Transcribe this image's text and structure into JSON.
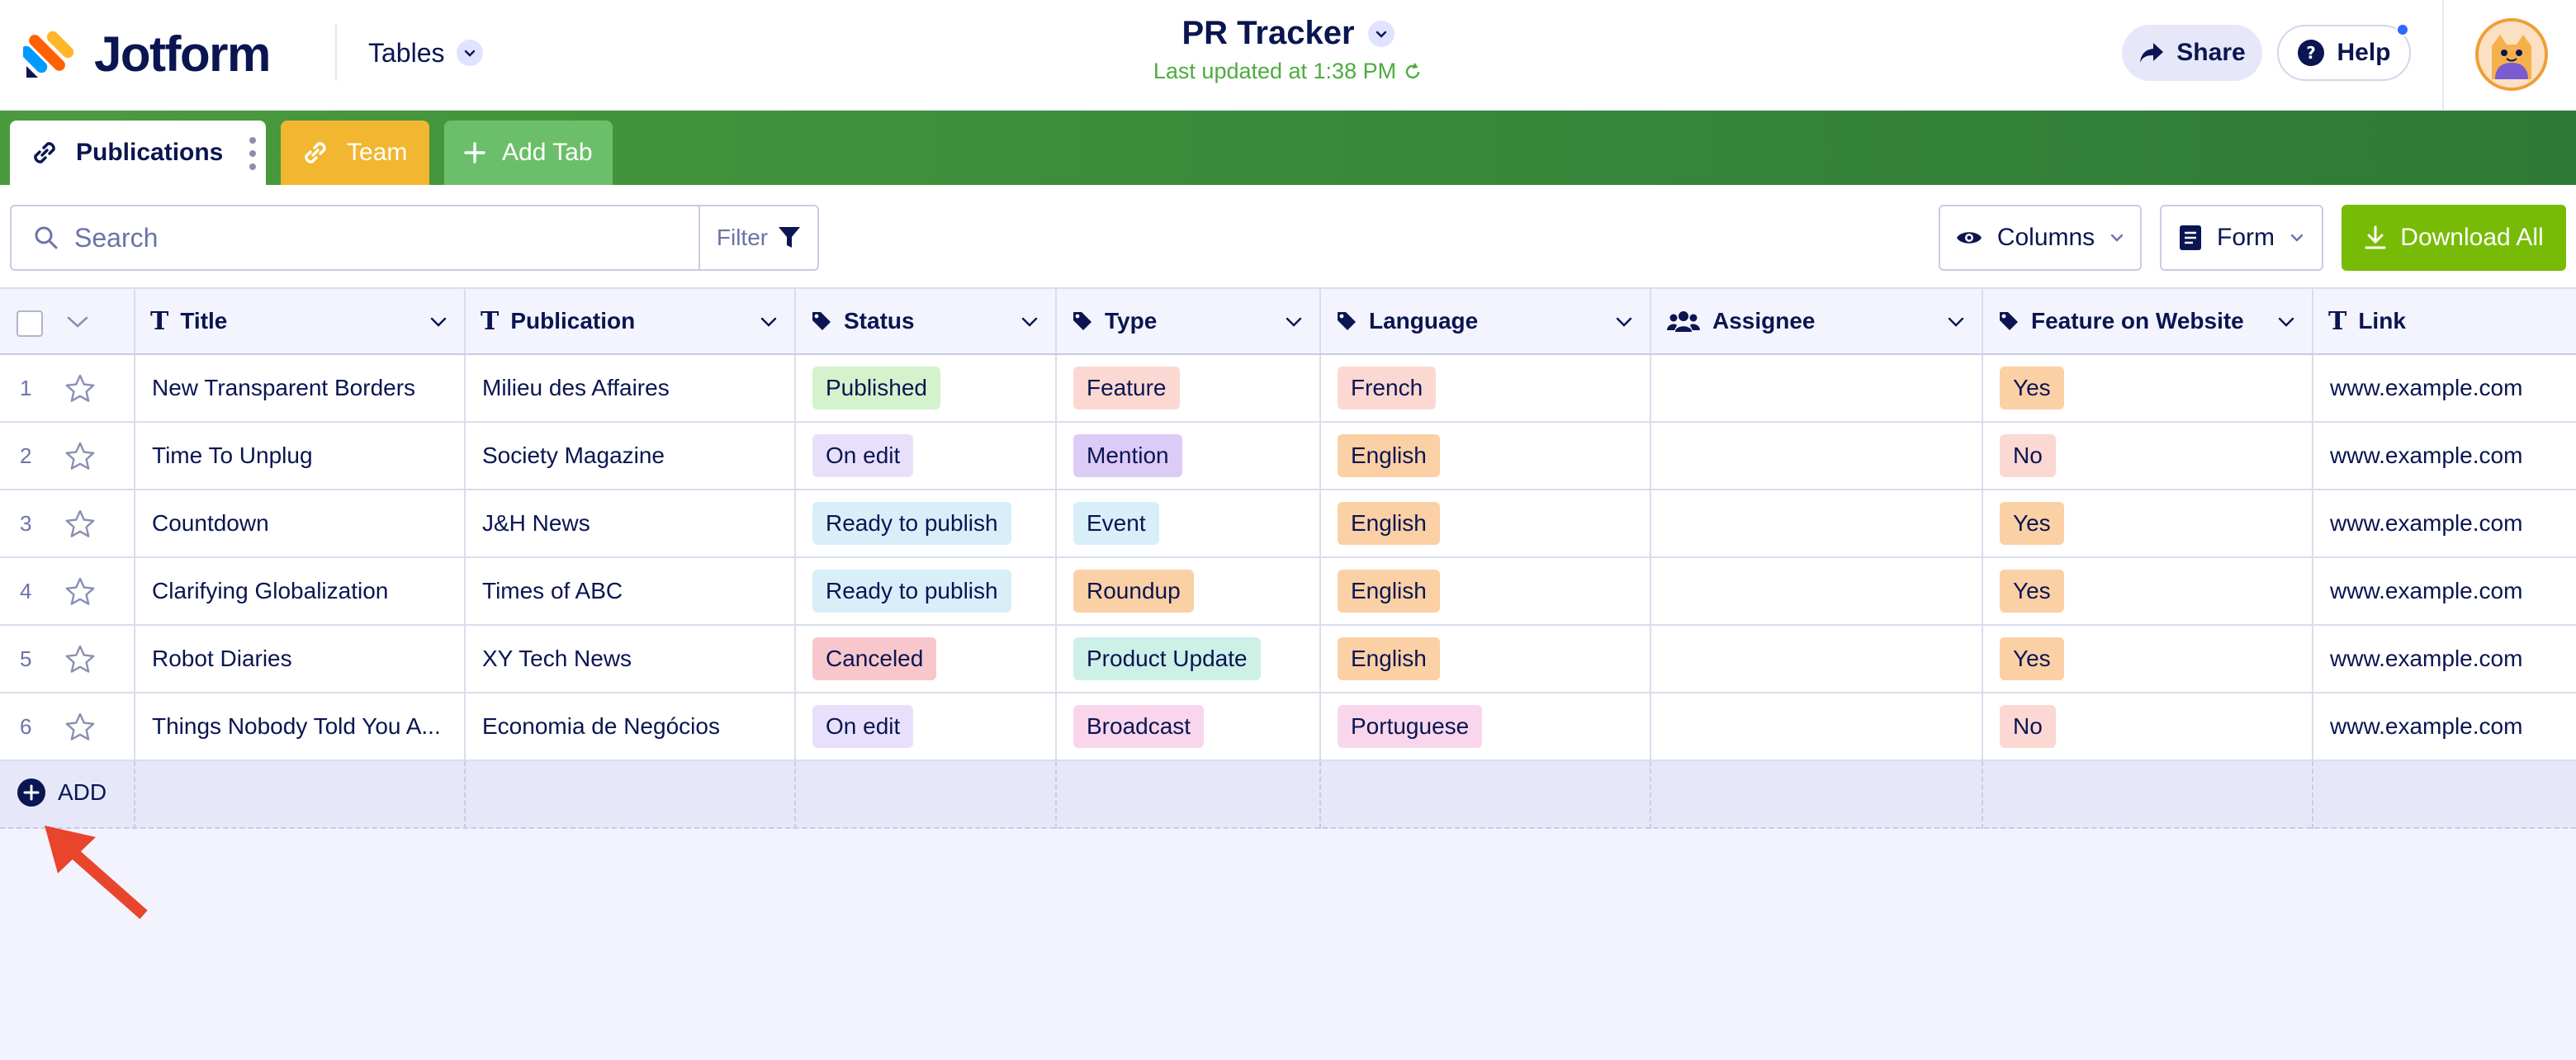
{
  "header": {
    "logo_text": "Jotform",
    "tables_label": "Tables",
    "title": "PR Tracker",
    "last_updated": "Last updated at 1:38 PM",
    "share_label": "Share",
    "help_label": "Help"
  },
  "tabs": [
    {
      "label": "Publications",
      "icon": "link-icon",
      "color": "#ffffff"
    },
    {
      "label": "Team",
      "icon": "link-icon",
      "color": "#f2b630"
    },
    {
      "label": "Add Tab",
      "icon": "plus-icon",
      "color": "#6cbf6a"
    }
  ],
  "toolbar": {
    "search_placeholder": "Search",
    "filter_label": "Filter",
    "columns_label": "Columns",
    "form_label": "Form",
    "download_label": "Download All"
  },
  "columns": [
    "Title",
    "Publication",
    "Status",
    "Type",
    "Language",
    "Assignee",
    "Feature on Website",
    "Link"
  ],
  "rows": [
    {
      "num": "1",
      "title": "New Transparent Borders",
      "publication": "Milieu des Affaires",
      "status": "Published",
      "type": "Feature",
      "language": "French",
      "assignee": "",
      "feature": "Yes",
      "link": "www.example.com"
    },
    {
      "num": "2",
      "title": "Time To Unplug",
      "publication": "Society Magazine",
      "status": "On edit",
      "type": "Mention",
      "language": "English",
      "assignee": "",
      "feature": "No",
      "link": "www.example.com"
    },
    {
      "num": "3",
      "title": "Countdown",
      "publication": "J&H News",
      "status": "Ready to publish",
      "type": "Event",
      "language": "English",
      "assignee": "",
      "feature": "Yes",
      "link": "www.example.com"
    },
    {
      "num": "4",
      "title": "Clarifying Globalization",
      "publication": "Times of ABC",
      "status": "Ready to publish",
      "type": "Roundup",
      "language": "English",
      "assignee": "",
      "feature": "Yes",
      "link": "www.example.com"
    },
    {
      "num": "5",
      "title": "Robot Diaries",
      "publication": "XY Tech News",
      "status": "Canceled",
      "type": "Product Update",
      "language": "English",
      "assignee": "",
      "feature": "Yes",
      "link": "www.example.com"
    },
    {
      "num": "6",
      "title": "Things Nobody Told You A...",
      "publication": "Economia de Negócios",
      "status": "On edit",
      "type": "Broadcast",
      "language": "Portuguese",
      "assignee": "",
      "feature": "No",
      "link": "www.example.com"
    }
  ],
  "pill_colors": {
    "Published": "#d4f3cc",
    "On edit": "#e8e0fb",
    "Ready to publish": "#d8effa",
    "Canceled": "#f7c7cc",
    "Feature": "#fcd8d3",
    "Mention": "#dccbf7",
    "Event": "#d8effa",
    "Roundup": "#fbd0a5",
    "Product Update": "#cdf0e7",
    "Broadcast": "#f9d6ec",
    "French": "#fcd8d3",
    "English": "#fbd0a5",
    "Portuguese": "#f9d6ec",
    "Yes": "#fbd0a5",
    "No": "#fcd8d3"
  },
  "add_row_label": "ADD",
  "colors": {
    "brand_navy": "#0a1551",
    "tabbar_green": "#3a8a3a",
    "download_green": "#78bb07",
    "updated_green": "#4cad3d",
    "annotation_red": "#e8452c"
  }
}
